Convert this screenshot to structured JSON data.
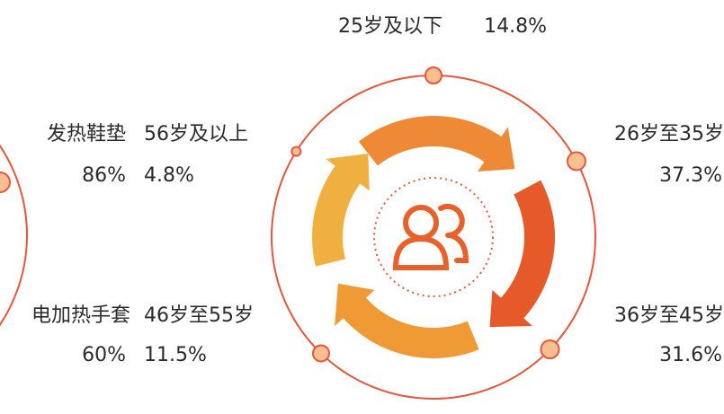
{
  "left_items": [
    {
      "label": "发热鞋垫",
      "value": "86%"
    },
    {
      "label": "电加热手套",
      "value": "60%"
    }
  ],
  "age_groups": [
    {
      "label": "25岁及以下",
      "value": "14.8%"
    },
    {
      "label": "26岁至35岁",
      "value": "37.3%"
    },
    {
      "label": "36岁至45岁",
      "value": "31.6%"
    },
    {
      "label": "46岁至55岁",
      "value": "11.5%"
    },
    {
      "label": "56岁及以上",
      "value": "4.8%"
    }
  ]
}
